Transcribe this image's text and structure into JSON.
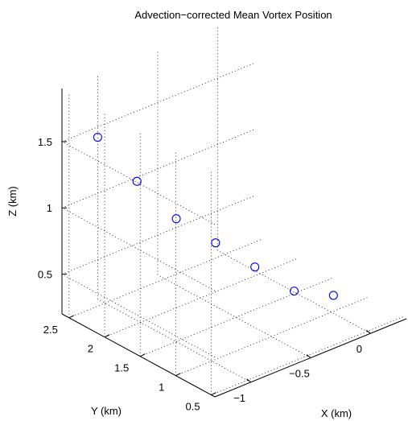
{
  "chart_data": {
    "type": "scatter",
    "title": "Advection−corrected Mean Vortex Position",
    "xlabel": "X (km)",
    "ylabel": "Y (km)",
    "zlabel": "Z (km)",
    "xlim": [
      -1.3,
      0.3
    ],
    "ylim": [
      0.45,
      2.6
    ],
    "zlim": [
      0.2,
      1.9
    ],
    "x_ticks": [
      {
        "value": -1,
        "label": "−1"
      },
      {
        "value": -0.5,
        "label": "−0.5"
      },
      {
        "value": 0,
        "label": "0"
      }
    ],
    "y_ticks": [
      {
        "value": 0.5,
        "label": "0.5"
      },
      {
        "value": 1,
        "label": "1"
      },
      {
        "value": 1.5,
        "label": "1.5"
      },
      {
        "value": 2,
        "label": "2"
      },
      {
        "value": 2.5,
        "label": "2.5"
      }
    ],
    "z_ticks": [
      {
        "value": 0.5,
        "label": "0.5"
      },
      {
        "value": 1,
        "label": "1"
      },
      {
        "value": 1.5,
        "label": "1.5"
      }
    ],
    "grid": true,
    "marker": "circle",
    "color": "#0000ff",
    "points": [
      {
        "x": -1.15,
        "y": 2.35,
        "z": 1.55
      },
      {
        "x": -1.0,
        "y": 2.05,
        "z": 1.25
      },
      {
        "x": -0.85,
        "y": 1.75,
        "z": 1.0
      },
      {
        "x": -0.7,
        "y": 1.45,
        "z": 0.85
      },
      {
        "x": -0.55,
        "y": 1.15,
        "z": 0.7
      },
      {
        "x": -0.4,
        "y": 0.85,
        "z": 0.55
      },
      {
        "x": -0.25,
        "y": 0.55,
        "z": 0.55
      }
    ]
  }
}
